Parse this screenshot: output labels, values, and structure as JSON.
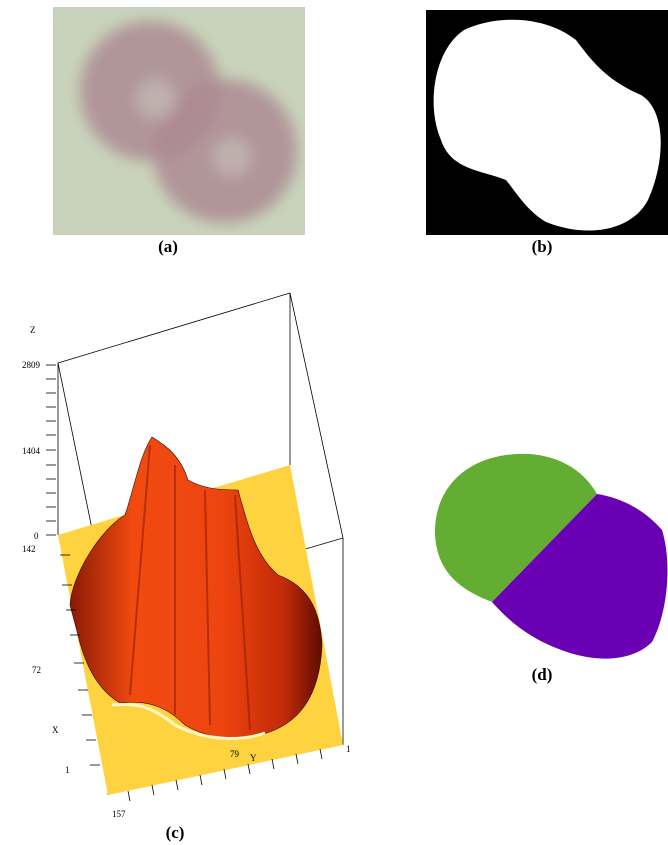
{
  "figure": {
    "panels": [
      {
        "id": "a",
        "caption": "(a)",
        "content": "microscope image of two overlapping red blood cells"
      },
      {
        "id": "b",
        "caption": "(b)",
        "content": "binary segmentation mask"
      },
      {
        "id": "c",
        "caption": "(c)",
        "content": "3D surface plot of distance transform"
      },
      {
        "id": "d",
        "caption": "(d)",
        "content": "split cells, two colored regions"
      }
    ]
  },
  "plot3d": {
    "z_label": "Z",
    "x_label": "X",
    "y_label": "Y",
    "z_ticks": [
      "2809",
      "1404",
      "0"
    ],
    "x_ticks": [
      "142",
      "72",
      "1"
    ],
    "y_ticks": [
      "157",
      "79",
      "1"
    ]
  },
  "colors": {
    "cell_background": "#c9d3bb",
    "cell_tint": "#a98a8f",
    "mask_bg": "#000000",
    "mask_fg": "#ffffff",
    "floor": "#ffd23f",
    "surface_main": "#f04a10",
    "surface_dark": "#7a1202",
    "region_green": "#62ad32",
    "region_purple": "#6a00b3"
  }
}
